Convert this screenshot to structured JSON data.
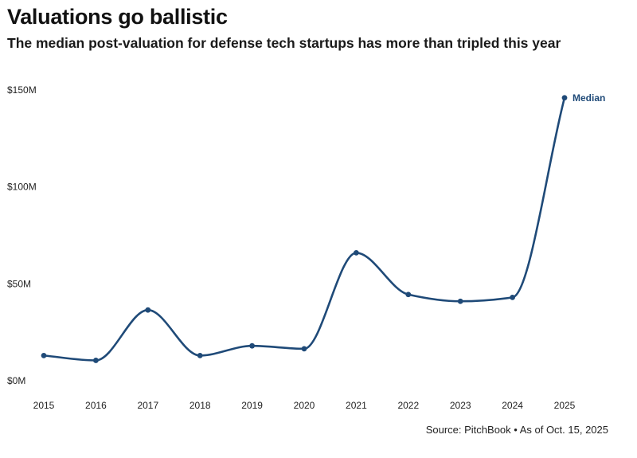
{
  "header": {
    "title": "Valuations go ballistic",
    "subtitle": "The median post-valuation for defense tech startups has more than tripled this year"
  },
  "source": {
    "text": "Source: PitchBook • As of Oct. 15, 2025"
  },
  "colors": {
    "series": "#1f4a78",
    "text": "#222222"
  },
  "chart_data": {
    "type": "line",
    "title": "Valuations go ballistic",
    "subtitle": "The median post-valuation for defense tech startups has more than tripled this year",
    "xlabel": "",
    "ylabel": "",
    "grid": false,
    "x": [
      "2015",
      "2016",
      "2017",
      "2018",
      "2019",
      "2020",
      "2021",
      "2022",
      "2023",
      "2024",
      "2025"
    ],
    "series": [
      {
        "name": "Median",
        "values": [
          13,
          10.5,
          36.5,
          13,
          18,
          16.5,
          66,
          44.5,
          41,
          43,
          146
        ]
      }
    ],
    "ylim": [
      0,
      150
    ],
    "y_ticks": [
      0,
      50,
      100,
      150
    ],
    "y_tick_labels": [
      "$0M",
      "$50M",
      "$100M",
      "$150M"
    ],
    "smooth": true,
    "markers": true
  }
}
